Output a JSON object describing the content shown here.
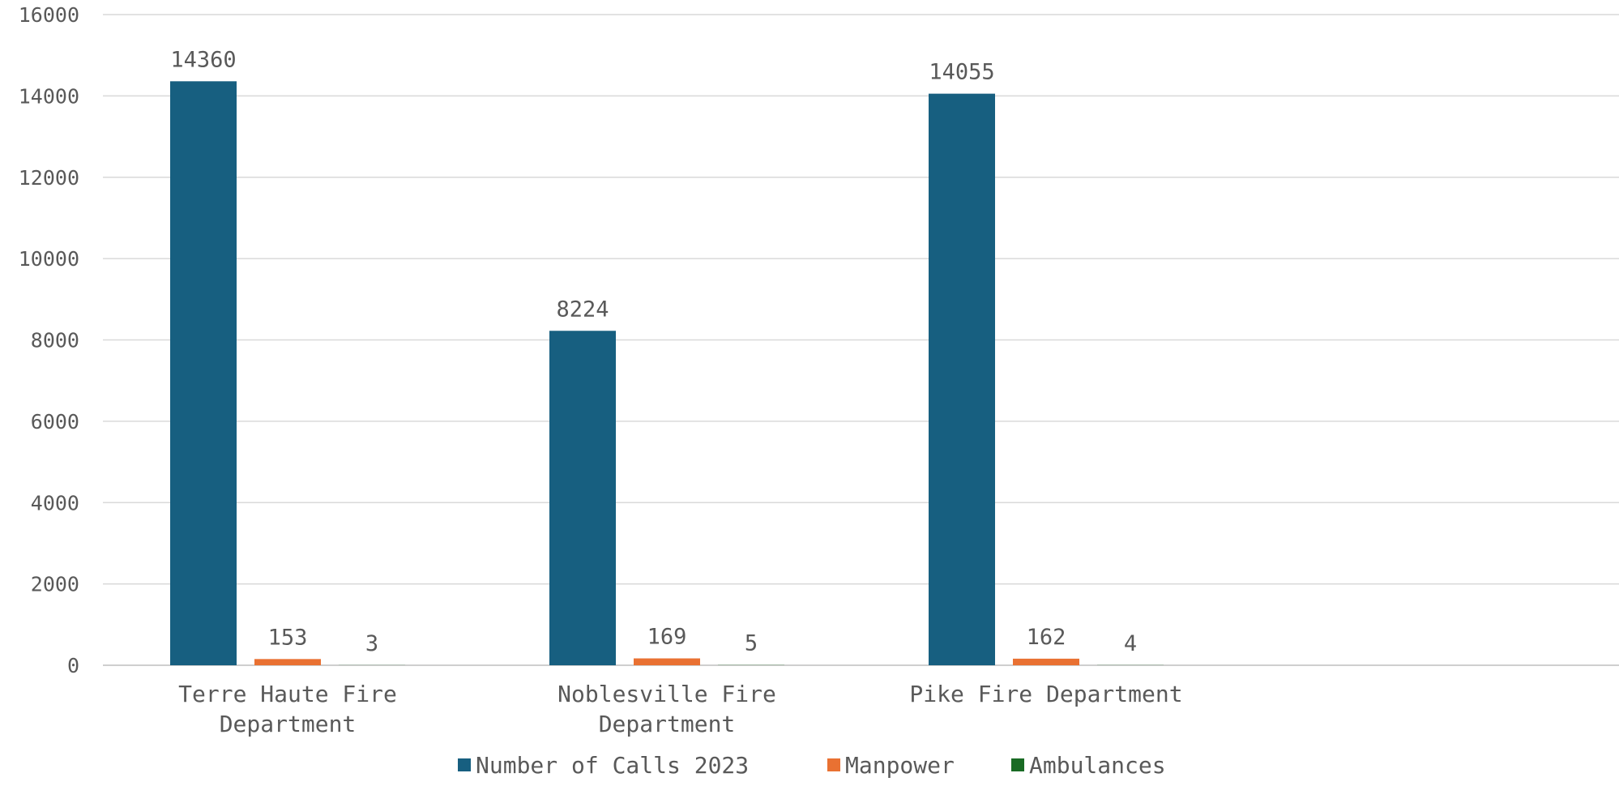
{
  "chart_data": {
    "type": "bar",
    "title": "",
    "xlabel": "",
    "ylabel": "",
    "ylim": [
      0,
      16000
    ],
    "yticks": [
      0,
      2000,
      4000,
      6000,
      8000,
      10000,
      12000,
      14000,
      16000
    ],
    "categories": [
      [
        "Terre Haute Fire",
        "Department"
      ],
      [
        "Noblesville Fire",
        "Department"
      ],
      [
        "Pike Fire Department"
      ]
    ],
    "series": [
      {
        "name": "Number of Calls 2023",
        "color": "#175F80",
        "values": [
          14360,
          8224,
          14055
        ]
      },
      {
        "name": "Manpower",
        "color": "#E97132",
        "values": [
          153,
          169,
          162
        ]
      },
      {
        "name": "Ambulances",
        "color": "#196B24",
        "values": [
          3,
          5,
          4
        ]
      }
    ],
    "grid": true,
    "legend_position": "bottom"
  }
}
